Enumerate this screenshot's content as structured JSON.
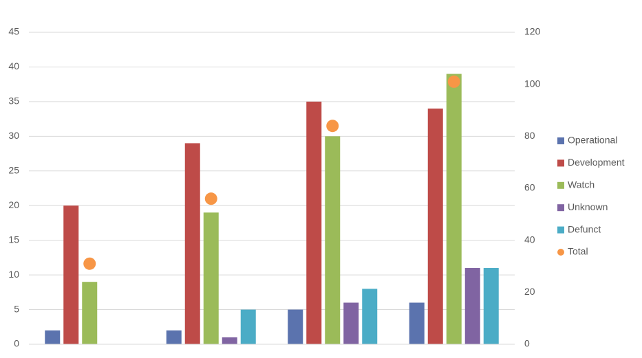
{
  "chart_data": {
    "type": "bar",
    "categories": [
      null,
      null,
      null,
      null
    ],
    "series": [
      {
        "name": "Operational",
        "color": "#5b73ae",
        "values": [
          2,
          2,
          5,
          6
        ]
      },
      {
        "name": "Development",
        "color": "#be4b48",
        "values": [
          20,
          29,
          35,
          34
        ]
      },
      {
        "name": "Watch",
        "color": "#9bbb59",
        "values": [
          9,
          19,
          30,
          39
        ]
      },
      {
        "name": "Unknown",
        "color": "#8064a2",
        "values": [
          0,
          1,
          6,
          11
        ]
      },
      {
        "name": "Defunct",
        "color": "#4bacc6",
        "values": [
          0,
          5,
          8,
          11
        ]
      },
      {
        "name": "Total",
        "color": "#f79646",
        "values": [
          31,
          56,
          84,
          101
        ],
        "axis": "y2",
        "type": "scatter"
      }
    ],
    "ylim": [
      0,
      45
    ],
    "yticks": [
      0,
      5,
      10,
      15,
      20,
      25,
      30,
      35,
      40,
      45
    ],
    "y2lim": [
      0,
      120
    ],
    "y2ticks": [
      0,
      20,
      40,
      60,
      80,
      100,
      120
    ],
    "grid": true,
    "legend": "right"
  }
}
